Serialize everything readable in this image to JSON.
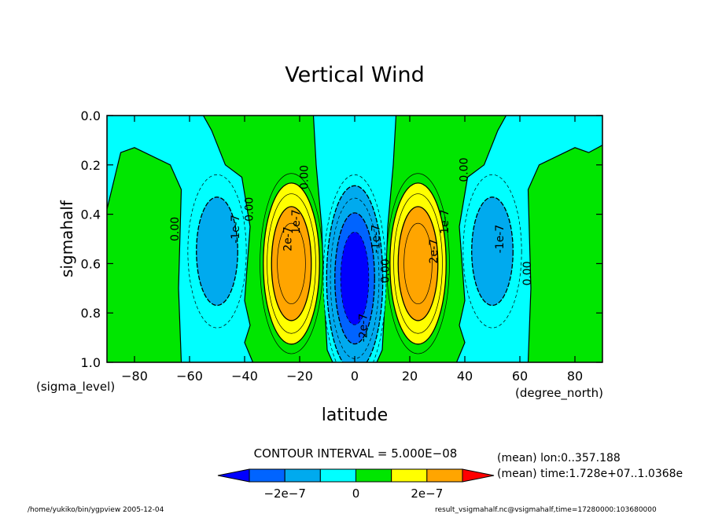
{
  "chart_data": {
    "type": "contour",
    "title": "Vertical Wind",
    "xlabel": "latitude",
    "ylabel": "sigmahalf",
    "x_units": "(degree_north)",
    "y_units": "(sigma_level)",
    "xlim": [
      -90,
      90
    ],
    "ylim": [
      1.0,
      0.0
    ],
    "x_ticks": [
      -80,
      -60,
      -40,
      -20,
      0,
      20,
      40,
      60,
      80
    ],
    "x_tick_labels": [
      "−80",
      "−60",
      "−40",
      "−20",
      "0",
      "20",
      "40",
      "60",
      "80"
    ],
    "y_ticks": [
      0.0,
      0.2,
      0.4,
      0.6,
      0.8,
      1.0
    ],
    "y_tick_labels": [
      "0.0",
      "0.2",
      "0.4",
      "0.6",
      "0.8",
      "1.0"
    ],
    "contour_interval_text": "CONTOUR INTERVAL = 5.000E−08",
    "contour_interval": 5e-08,
    "regions": [
      {
        "sign": -1,
        "lat_center": 0,
        "sigma_center": 0.66,
        "lat_halfwidth": 12.5,
        "sigma_top": 0.2,
        "sigma_bottom": 0.99,
        "amplitude": 2.8e-07
      },
      {
        "sign": 1,
        "lat_center": -23,
        "sigma_center": 0.6,
        "lat_halfwidth": 12.5,
        "sigma_top": 0.2,
        "sigma_bottom": 0.93,
        "amplitude": 2.6e-07
      },
      {
        "sign": 1,
        "lat_center": 23,
        "sigma_center": 0.6,
        "lat_halfwidth": 12.5,
        "sigma_top": 0.2,
        "sigma_bottom": 0.93,
        "amplitude": 2.6e-07
      },
      {
        "sign": -1,
        "lat_center": -50,
        "sigma_center": 0.55,
        "lat_halfwidth": 13,
        "sigma_top": 0.18,
        "sigma_bottom": 0.93,
        "amplitude": 1.3e-07
      },
      {
        "sign": -1,
        "lat_center": 50,
        "sigma_center": 0.55,
        "lat_halfwidth": 13,
        "sigma_top": 0.18,
        "sigma_bottom": 0.93,
        "amplitude": 1.3e-07
      }
    ],
    "contour_labels": [
      {
        "text": "0.00",
        "lat": -64,
        "sigma": 0.46
      },
      {
        "text": "-1e-7",
        "lat": -42,
        "sigma": 0.46
      },
      {
        "text": "0.00",
        "lat": -37,
        "sigma": 0.38
      },
      {
        "text": "0.00",
        "lat": -17,
        "sigma": 0.25
      },
      {
        "text": "1e-7",
        "lat": -20,
        "sigma": 0.43
      },
      {
        "text": "2e-7",
        "lat": -23,
        "sigma": 0.5
      },
      {
        "text": "-1e-7",
        "lat": 9,
        "sigma": 0.5
      },
      {
        "text": "0.00",
        "lat": 12.5,
        "sigma": 0.63
      },
      {
        "text": "-2e-7",
        "lat": 4.5,
        "sigma": 0.86
      },
      {
        "text": "2e-7",
        "lat": 30,
        "sigma": 0.55
      },
      {
        "text": "1e-7",
        "lat": 34,
        "sigma": 0.43
      },
      {
        "text": "0.00",
        "lat": 41,
        "sigma": 0.22
      },
      {
        "text": "-1e-7",
        "lat": 54,
        "sigma": 0.5
      },
      {
        "text": "0.00",
        "lat": 64,
        "sigma": 0.64
      }
    ],
    "colorbar": {
      "colors": [
        "#0000ff",
        "#0064ff",
        "#00aaee",
        "#00ffff",
        "#00e600",
        "#ffff00",
        "#ffa500",
        "#ff0000"
      ],
      "labels": [
        "−2e−7",
        "0",
        "2e−7"
      ]
    },
    "colors": {
      "zero_pos": "#00e600",
      "pos1": "#ffff00",
      "pos2": "#ffa500",
      "zero_neg": "#00ffff",
      "neg1": "#00aaee",
      "neg2": "#0064ff",
      "neg3": "#0000ff"
    }
  },
  "notes": {
    "mean_lon": "(mean) lon:0..357.188",
    "mean_time": "(mean) time:1.728e+07..1.0368e",
    "footer_left": "/home/yukiko/bin/ygpview  2005-12-04",
    "footer_right": "result_vsigmahalf.nc@vsigmahalf,time=17280000:103680000"
  }
}
